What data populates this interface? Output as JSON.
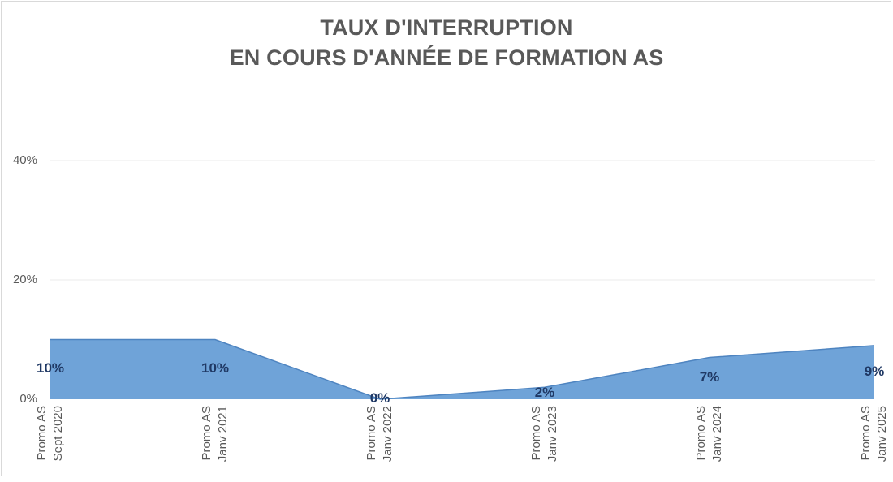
{
  "title": {
    "line1": "TAUX D'INTERRUPTION",
    "line2": "EN COURS D'ANNÉE DE FORMATION AS"
  },
  "chart_data": {
    "type": "area",
    "title": "TAUX D'INTERRUPTION EN COURS D'ANNÉE DE FORMATION AS",
    "categories": [
      [
        "Promo AS",
        "Sept 2020"
      ],
      [
        "Promo AS",
        "Janv 2021"
      ],
      [
        "Promo AS",
        "Janv 2022"
      ],
      [
        "Promo AS",
        "Janv 2023"
      ],
      [
        "Promo AS",
        "Janv 2024"
      ],
      [
        "Promo AS",
        "Janv 2025"
      ]
    ],
    "values": [
      10,
      10,
      0,
      2,
      7,
      9
    ],
    "data_labels": [
      "10%",
      "10%",
      "0%",
      "2%",
      "7%",
      "9%"
    ],
    "y_axis": {
      "tick_labels": [
        "0%",
        "20%",
        "40%"
      ],
      "tick_values": [
        0,
        20,
        40
      ],
      "range": [
        0,
        40
      ]
    },
    "xlabel": "",
    "ylabel": "",
    "grid": "horizontal",
    "legend": "none",
    "colors": {
      "area_fill": "#6FA3D8",
      "area_line": "#4E84C0",
      "data_label": "#1F3864",
      "axis_text": "#595959",
      "title_text": "#595959",
      "gridline": "#EBEBEB",
      "chart_border": "#D9D9D9"
    }
  }
}
